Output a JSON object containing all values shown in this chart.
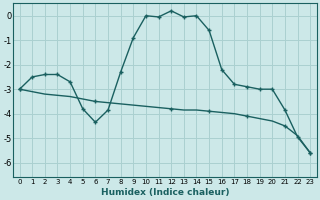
{
  "xlabel": "Humidex (Indice chaleur)",
  "background_color": "#cce8e8",
  "grid_color": "#aad0d0",
  "line_color": "#1a6060",
  "xlim": [
    -0.5,
    23.5
  ],
  "ylim": [
    -6.6,
    0.5
  ],
  "yticks": [
    0,
    -1,
    -2,
    -3,
    -4,
    -5,
    -6
  ],
  "xticks": [
    0,
    1,
    2,
    3,
    4,
    5,
    6,
    7,
    8,
    9,
    10,
    11,
    12,
    13,
    14,
    15,
    16,
    17,
    18,
    19,
    20,
    21,
    22,
    23
  ],
  "curve1_x": [
    0,
    1,
    2,
    3,
    4,
    5,
    6,
    7,
    8,
    9,
    10,
    11,
    12,
    13,
    14,
    15,
    16,
    17,
    18,
    19,
    20,
    21,
    22,
    23
  ],
  "curve1_y": [
    -3.0,
    -2.5,
    -2.4,
    -2.4,
    -2.7,
    -3.8,
    -4.35,
    -3.85,
    -2.3,
    -0.9,
    0.0,
    -0.05,
    0.2,
    -0.05,
    0.0,
    -0.6,
    -2.2,
    -2.8,
    -2.9,
    -3.0,
    -3.0,
    -3.85,
    -4.95,
    -5.6
  ],
  "curve2_x": [
    0,
    1,
    2,
    3,
    4,
    5,
    6,
    7,
    8,
    9,
    10,
    11,
    12,
    13,
    14,
    15,
    16,
    17,
    18,
    19,
    20,
    21,
    22,
    23
  ],
  "curve2_y": [
    -3.0,
    -3.1,
    -3.2,
    -3.25,
    -3.3,
    -3.4,
    -3.5,
    -3.55,
    -3.6,
    -3.65,
    -3.7,
    -3.75,
    -3.8,
    -3.85,
    -3.85,
    -3.9,
    -3.95,
    -4.0,
    -4.1,
    -4.2,
    -4.3,
    -4.5,
    -4.9,
    -5.6
  ],
  "marker_x2": [
    0,
    6,
    12,
    15,
    18,
    21,
    23
  ],
  "marker_y2": [
    -3.0,
    -3.5,
    -3.8,
    -3.9,
    -4.1,
    -4.5,
    -5.6
  ]
}
